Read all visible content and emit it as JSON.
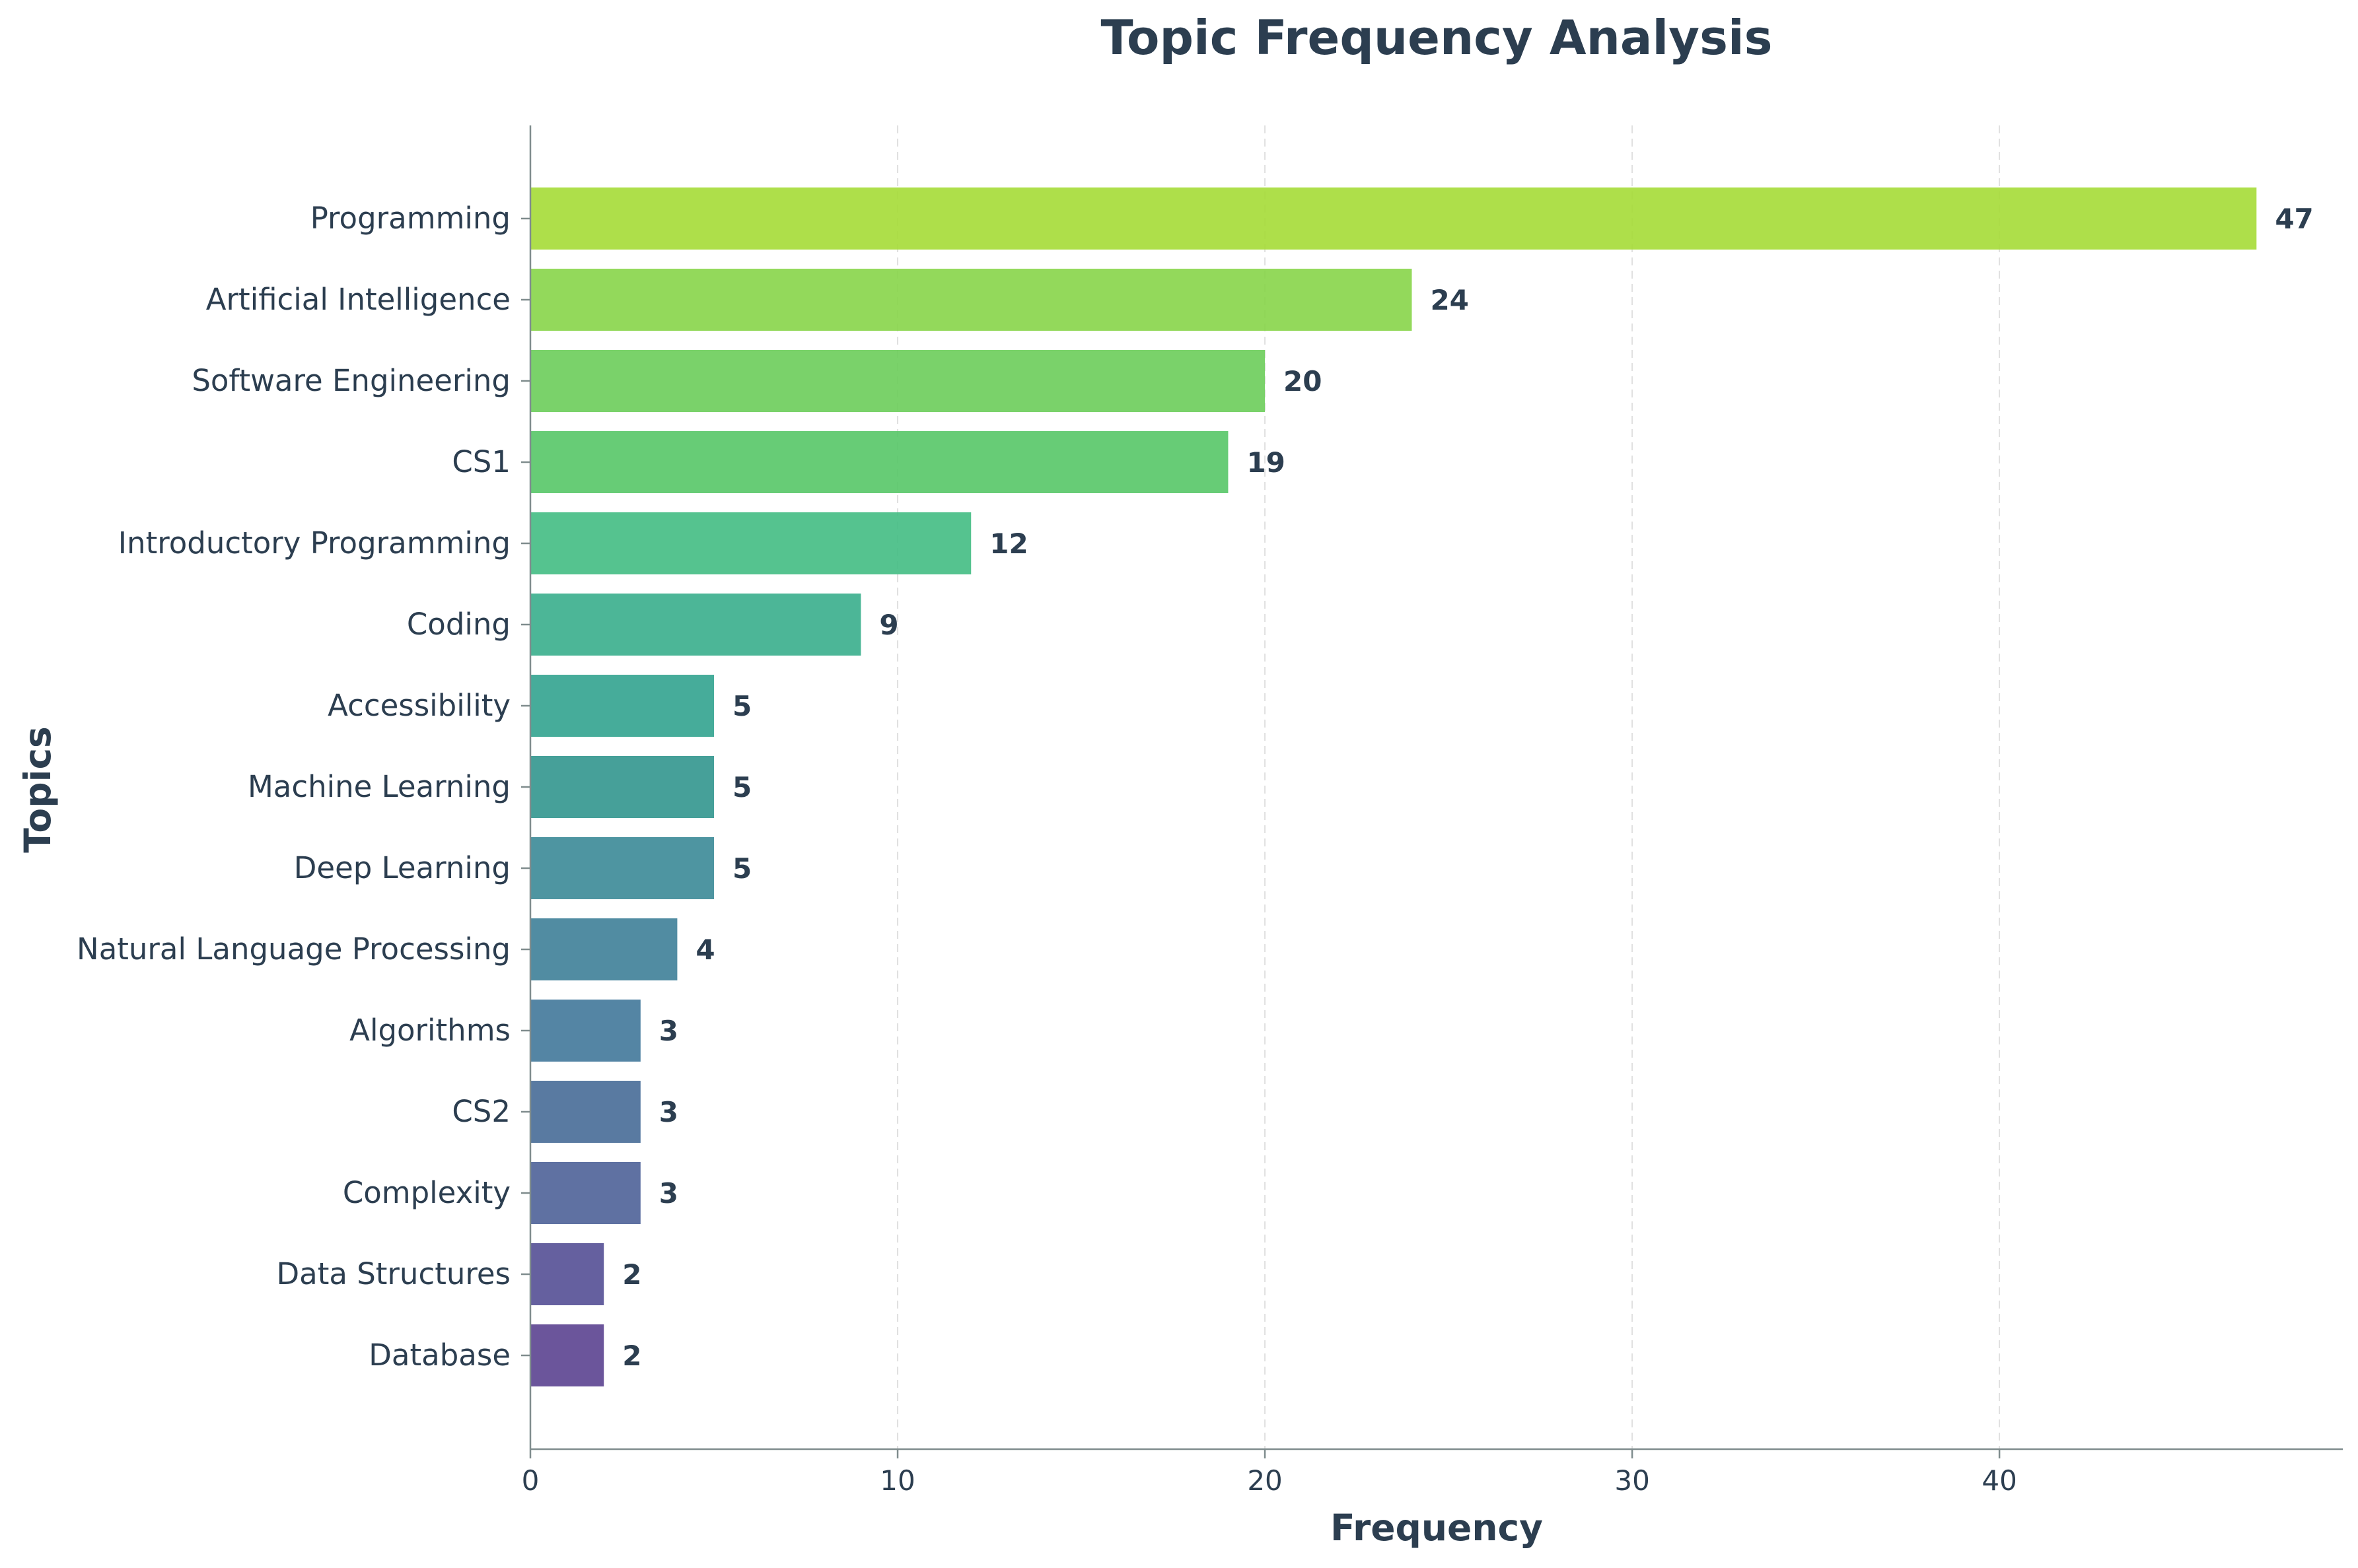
{
  "chart_data": {
    "type": "bar",
    "orientation": "horizontal",
    "title": "Topic Frequency Analysis",
    "xlabel": "Frequency",
    "ylabel": "Topics",
    "xlim": [
      0,
      49.35
    ],
    "xticks": [
      0,
      10,
      20,
      30,
      40
    ],
    "grid": {
      "x": true,
      "y": false,
      "style": "dashed"
    },
    "legend": "none",
    "categories": [
      "Programming",
      "Artificial Intelligence",
      "Software Engineering",
      "CS1",
      "Introductory Programming",
      "Coding",
      "Accessibility",
      "Machine Learning",
      "Deep Learning",
      "Natural Language Processing",
      "Algorithms",
      "CS2",
      "Complexity",
      "Data Structures",
      "Database"
    ],
    "values": [
      47,
      24,
      20,
      19,
      12,
      9,
      5,
      5,
      5,
      4,
      3,
      3,
      3,
      2,
      2
    ],
    "bar_colors": [
      "#a5db36",
      "#87d549",
      "#6ccd5a",
      "#56c667",
      "#43bd83",
      "#38ae8c",
      "#32a38f",
      "#32968e",
      "#3b8a97",
      "#3e7f98",
      "#41789a",
      "#476c97",
      "#4e6298",
      "#544f95",
      "#5b4290"
    ],
    "text_color": "#2c3e50",
    "axis_color": "#7f8c8d"
  }
}
